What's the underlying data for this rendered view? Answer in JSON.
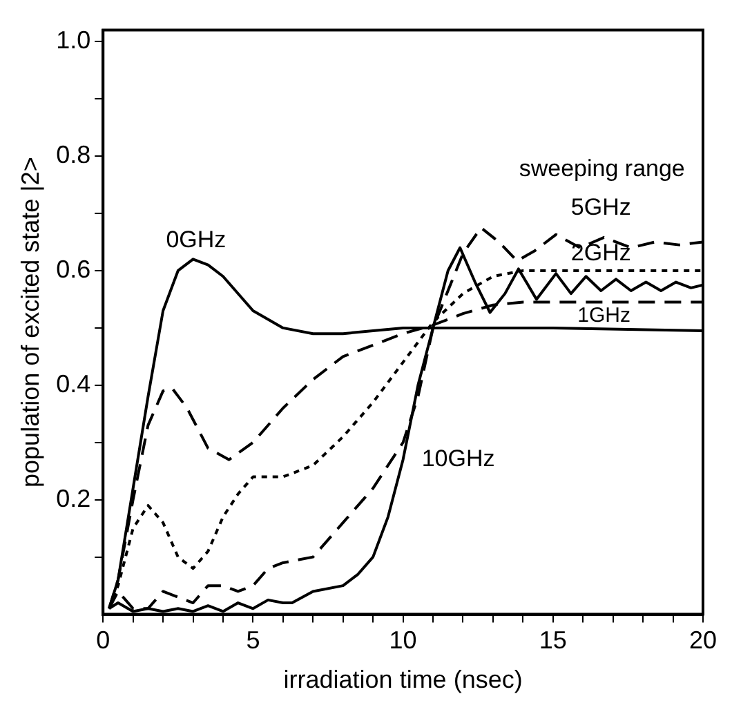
{
  "chart_data": {
    "type": "line",
    "xlabel": "irradiation time (nsec)",
    "ylabel": "population of excited state |2>",
    "xlim": [
      0,
      20
    ],
    "ylim": [
      0,
      1.02
    ],
    "xticks": [
      0,
      {
        "value": 1,
        "label": null
      },
      {
        "value": 2,
        "label": null
      },
      {
        "value": 3,
        "label": null
      },
      {
        "value": 4,
        "label": null
      },
      5,
      {
        "value": 6,
        "label": null
      },
      {
        "value": 7,
        "label": null
      },
      {
        "value": 8,
        "label": null
      },
      {
        "value": 9,
        "label": null
      },
      10,
      {
        "value": 11,
        "label": null
      },
      {
        "value": 12,
        "label": null
      },
      {
        "value": 13,
        "label": null
      },
      {
        "value": 14,
        "label": null
      },
      15,
      {
        "value": 16,
        "label": null
      },
      {
        "value": 17,
        "label": null
      },
      {
        "value": 18,
        "label": null
      },
      {
        "value": 19,
        "label": null
      },
      20
    ],
    "yticks": [
      {
        "value": 0.1,
        "label": null
      },
      {
        "value": 0.2,
        "label": "0.2"
      },
      {
        "value": 0.3,
        "label": null
      },
      {
        "value": 0.4,
        "label": "0.4"
      },
      {
        "value": 0.5,
        "label": null
      },
      {
        "value": 0.6,
        "label": "0.6"
      },
      {
        "value": 0.7,
        "label": null
      },
      {
        "value": 0.8,
        "label": "0.8"
      },
      {
        "value": 0.9,
        "label": null
      },
      {
        "value": 1.0,
        "label": "1.0"
      }
    ],
    "grid": false,
    "legend": false,
    "marker": "none",
    "series": [
      {
        "name": "0GHz",
        "color": "#000000",
        "line_style": "solid",
        "x": [
          0.2,
          0.5,
          1,
          1.5,
          2,
          2.5,
          3,
          3.5,
          4,
          5,
          6,
          7,
          8,
          9,
          10,
          11,
          15,
          20
        ],
        "values": [
          0.01,
          0.06,
          0.22,
          0.38,
          0.53,
          0.6,
          0.62,
          0.61,
          0.59,
          0.53,
          0.5,
          0.49,
          0.49,
          0.495,
          0.5,
          0.5,
          0.5,
          0.495
        ]
      },
      {
        "name": "1GHz",
        "color": "#000000",
        "line_style": "dashed",
        "x": [
          0.2,
          0.5,
          1,
          1.5,
          2,
          2.3,
          2.8,
          3.5,
          4.2,
          5,
          6,
          7,
          8,
          9,
          10,
          11,
          12,
          13,
          14,
          20
        ],
        "values": [
          0.01,
          0.06,
          0.2,
          0.33,
          0.39,
          0.395,
          0.36,
          0.29,
          0.27,
          0.3,
          0.36,
          0.41,
          0.45,
          0.47,
          0.49,
          0.505,
          0.525,
          0.54,
          0.545,
          0.545
        ]
      },
      {
        "name": "2GHz",
        "color": "#000000",
        "line_style": "dotted",
        "x": [
          0.2,
          0.5,
          1,
          1.5,
          2,
          2.5,
          3,
          3.5,
          4,
          4.5,
          5,
          6,
          7,
          8,
          9,
          10,
          11,
          12,
          13,
          14,
          16,
          20
        ],
        "values": [
          0.01,
          0.05,
          0.15,
          0.19,
          0.16,
          0.1,
          0.08,
          0.11,
          0.17,
          0.21,
          0.24,
          0.24,
          0.26,
          0.31,
          0.37,
          0.44,
          0.51,
          0.56,
          0.59,
          0.6,
          0.6,
          0.6
        ]
      },
      {
        "name": "5GHz",
        "color": "#000000",
        "line_style": "dashed",
        "x": [
          0.2,
          0.5,
          1,
          1.5,
          2,
          2.5,
          3,
          3.5,
          4,
          4.5,
          5,
          5.5,
          6,
          7,
          8,
          9,
          10,
          10.5,
          11,
          12,
          12.6,
          13.2,
          13.8,
          14.4,
          15.1,
          15.9,
          16.7,
          17.6,
          18.4,
          19.2,
          20
        ],
        "values": [
          0.01,
          0.04,
          0.01,
          0.01,
          0.04,
          0.03,
          0.02,
          0.05,
          0.05,
          0.04,
          0.05,
          0.08,
          0.09,
          0.1,
          0.16,
          0.22,
          0.3,
          0.38,
          0.5,
          0.63,
          0.675,
          0.65,
          0.617,
          0.635,
          0.663,
          0.64,
          0.658,
          0.64,
          0.65,
          0.645,
          0.65
        ]
      },
      {
        "name": "10GHz",
        "color": "#000000",
        "line_style": "solid",
        "x": [
          0.2,
          0.5,
          1,
          1.5,
          2,
          2.5,
          3,
          3.5,
          4,
          4.5,
          5,
          5.5,
          6,
          6.3,
          7,
          8,
          8.5,
          9,
          9.5,
          10,
          10.5,
          11,
          11.5,
          11.9,
          12.4,
          12.9,
          13.4,
          13.85,
          14.45,
          15.1,
          15.6,
          16.1,
          16.6,
          17.1,
          17.6,
          18.1,
          18.6,
          19.1,
          19.6,
          20
        ],
        "values": [
          0.01,
          0.02,
          0.005,
          0.01,
          0.005,
          0.01,
          0.005,
          0.015,
          0.005,
          0.02,
          0.01,
          0.025,
          0.02,
          0.02,
          0.04,
          0.05,
          0.07,
          0.1,
          0.17,
          0.27,
          0.4,
          0.5,
          0.6,
          0.64,
          0.58,
          0.527,
          0.56,
          0.603,
          0.55,
          0.595,
          0.56,
          0.59,
          0.565,
          0.585,
          0.565,
          0.58,
          0.565,
          0.58,
          0.57,
          0.575
        ]
      }
    ],
    "legend_title": "sweeping range"
  }
}
